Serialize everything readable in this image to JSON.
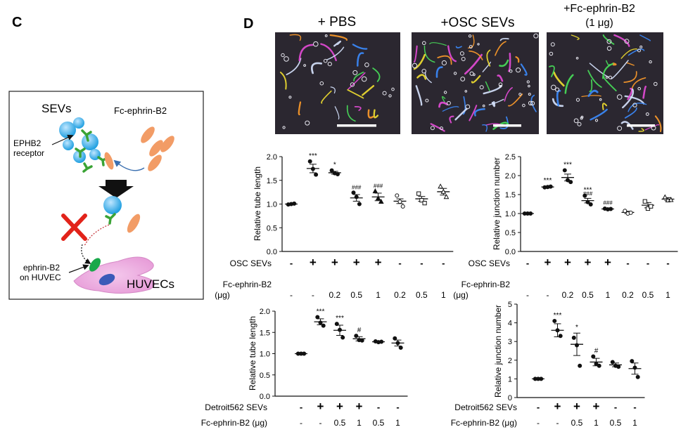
{
  "panel_c": {
    "letter": "C",
    "sevs_label": "SEVs",
    "fc_label": "Fc-ephrin-B2",
    "ephb2_line1": "EPHB2",
    "ephb2_line2": "receptor",
    "ephrin_line1": "ephrin-B2",
    "ephrin_line2": "on HUVEC",
    "huvec_label": "HUVECs"
  },
  "panel_d": {
    "letter": "D",
    "micrographs": [
      {
        "title": "+ PBS",
        "subtitle": ""
      },
      {
        "title": "+OSC SEVs",
        "subtitle": ""
      },
      {
        "title": "+Fc-ephrin-B2",
        "subtitle": "(1 μg)"
      }
    ]
  },
  "conditions_top": {
    "row1_label": "OSC SEVs",
    "row1": [
      "-",
      "+",
      "+",
      "+",
      "+",
      "-",
      "-",
      "-"
    ],
    "row2_label": "Fc-ephrin-B2",
    "row2_unit": "(μg)",
    "row2": [
      "-",
      "-",
      "0.2",
      "0.5",
      "1",
      "0.2",
      "0.5",
      "1"
    ]
  },
  "conditions_bottom": {
    "row1_label": "Detroit562 SEVs",
    "row1": [
      "-",
      "+",
      "+",
      "+",
      "-",
      "-"
    ],
    "row2_label": "Fc-ephrin-B2 (μg)",
    "row2": [
      "-",
      "-",
      "0.5",
      "1",
      "0.5",
      "1"
    ]
  },
  "chart_data": [
    {
      "id": "osc-tube-length",
      "type": "scatter",
      "title": "",
      "xlabel": "",
      "ylabel": "Relative tube length",
      "ylim": [
        0,
        2.0
      ],
      "yticks": [
        0.0,
        0.5,
        1.0,
        1.5,
        2.0
      ],
      "tick_decimals": 1,
      "markers": [
        "circle",
        "circle",
        "circle",
        "circle",
        "triangle",
        "circle",
        "square",
        "triangle"
      ],
      "means": [
        1.0,
        1.75,
        1.66,
        1.13,
        1.15,
        1.06,
        1.11,
        1.26
      ],
      "sems": [
        0.0,
        0.09,
        0.03,
        0.07,
        0.08,
        0.05,
        0.05,
        0.07
      ],
      "points": [
        [
          0.99,
          1.0,
          1.01
        ],
        [
          1.9,
          1.74,
          1.62
        ],
        [
          1.71,
          1.65,
          1.63
        ],
        [
          1.24,
          1.15,
          1.0
        ],
        [
          1.27,
          1.12,
          1.05
        ],
        [
          1.18,
          1.05,
          0.95
        ],
        [
          1.22,
          1.08,
          1.02
        ],
        [
          1.37,
          1.26,
          1.15
        ]
      ],
      "sig_above": [
        "",
        "***",
        "*",
        "",
        "",
        "",
        "",
        ""
      ],
      "sig_below": [
        "",
        "",
        "",
        "###",
        "###",
        "",
        "",
        ""
      ]
    },
    {
      "id": "osc-junction-number",
      "type": "scatter",
      "title": "",
      "xlabel": "",
      "ylabel": "Relative junction number",
      "ylim": [
        0,
        2.5
      ],
      "yticks": [
        0.0,
        0.5,
        1.0,
        1.5,
        2.0,
        2.5
      ],
      "tick_decimals": 1,
      "markers": [
        "circle",
        "circle",
        "circle",
        "circle",
        "circle",
        "circle",
        "square",
        "triangle"
      ],
      "means": [
        1.0,
        1.7,
        1.95,
        1.34,
        1.12,
        1.03,
        1.22,
        1.38
      ],
      "sems": [
        0.0,
        0.02,
        0.09,
        0.06,
        0.02,
        0.03,
        0.07,
        0.04
      ],
      "points": [
        [
          1.0,
          1.0,
          1.0
        ],
        [
          1.69,
          1.7,
          1.71
        ],
        [
          2.14,
          1.88,
          1.83
        ],
        [
          1.47,
          1.3,
          1.24
        ],
        [
          1.13,
          1.11,
          1.12
        ],
        [
          1.07,
          1.0,
          1.02
        ],
        [
          1.32,
          1.13,
          1.19
        ],
        [
          1.43,
          1.35,
          1.36
        ]
      ],
      "sig_above": [
        "",
        "***",
        "***",
        "***",
        "",
        "",
        "",
        ""
      ],
      "sig_below": [
        "",
        "",
        "",
        "###",
        "###",
        "",
        "",
        ""
      ]
    },
    {
      "id": "detroit-tube-length",
      "type": "scatter",
      "title": "",
      "xlabel": "",
      "ylabel": "Relative tube length",
      "ylim": [
        0,
        2.0
      ],
      "yticks": [
        0.0,
        0.5,
        1.0,
        1.5,
        2.0
      ],
      "tick_decimals": 1,
      "markers": [
        "circle",
        "circle",
        "circle",
        "circle",
        "circle",
        "circle"
      ],
      "means": [
        1.0,
        1.75,
        1.55,
        1.35,
        1.28,
        1.25
      ],
      "sems": [
        0.0,
        0.07,
        0.12,
        0.05,
        0.01,
        0.07
      ],
      "points": [
        [
          1.0,
          1.0,
          1.0
        ],
        [
          1.86,
          1.73,
          1.66
        ],
        [
          1.7,
          1.56,
          1.38
        ],
        [
          1.42,
          1.32,
          1.31
        ],
        [
          1.29,
          1.27,
          1.28
        ],
        [
          1.36,
          1.25,
          1.14
        ]
      ],
      "sig_above": [
        "",
        "***",
        "***",
        "#",
        "",
        ""
      ],
      "sig_below": [
        "",
        "",
        "",
        "",
        "",
        ""
      ]
    },
    {
      "id": "detroit-junction-number",
      "type": "scatter",
      "title": "",
      "xlabel": "",
      "ylabel": "Relative junction number",
      "ylim": [
        0,
        5
      ],
      "yticks": [
        0,
        1,
        2,
        3,
        4,
        5
      ],
      "tick_decimals": 0,
      "markers": [
        "circle",
        "circle",
        "circle",
        "circle",
        "circle",
        "circle"
      ],
      "means": [
        1.0,
        3.6,
        2.85,
        1.9,
        1.75,
        1.55
      ],
      "sems": [
        0.0,
        0.35,
        0.6,
        0.2,
        0.1,
        0.3
      ],
      "points": [
        [
          1.0,
          1.0,
          1.0
        ],
        [
          4.1,
          3.6,
          3.3
        ],
        [
          3.2,
          2.8,
          1.7
        ],
        [
          2.2,
          1.8,
          1.7
        ],
        [
          1.9,
          1.7,
          1.65
        ],
        [
          1.95,
          1.6,
          1.1
        ]
      ],
      "sig_above": [
        "",
        "***",
        "*",
        "#",
        "",
        ""
      ],
      "sig_below": [
        "",
        "",
        "",
        "",
        "",
        ""
      ]
    }
  ]
}
